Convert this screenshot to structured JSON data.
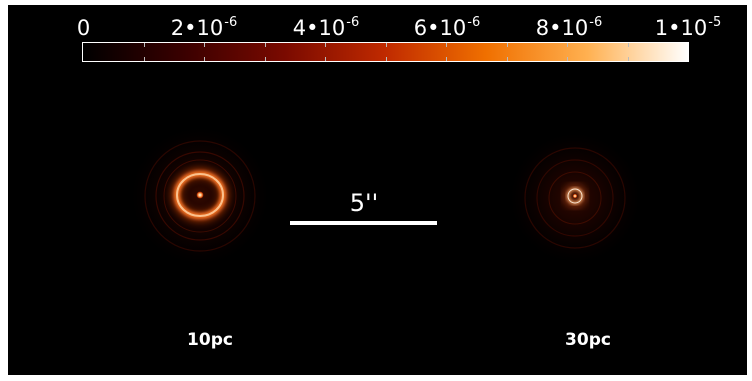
{
  "colorbar": {
    "min": 0,
    "max": 1e-05,
    "ticks": [
      {
        "mantissa": "0",
        "exponent": ""
      },
      {
        "mantissa": "2•10",
        "exponent": "-6"
      },
      {
        "mantissa": "4•10",
        "exponent": "-6"
      },
      {
        "mantissa": "6•10",
        "exponent": "-6"
      },
      {
        "mantissa": "8•10",
        "exponent": "-6"
      },
      {
        "mantissa": "1•10",
        "exponent": "-5"
      }
    ],
    "colormap": [
      "#000000",
      "#3a0000",
      "#7a0a00",
      "#c02a00",
      "#f07000",
      "#ffb050",
      "#ffffff"
    ]
  },
  "scalebar": {
    "label": "5''"
  },
  "panels": [
    {
      "label": "10pc"
    },
    {
      "label": "30pc"
    }
  ]
}
